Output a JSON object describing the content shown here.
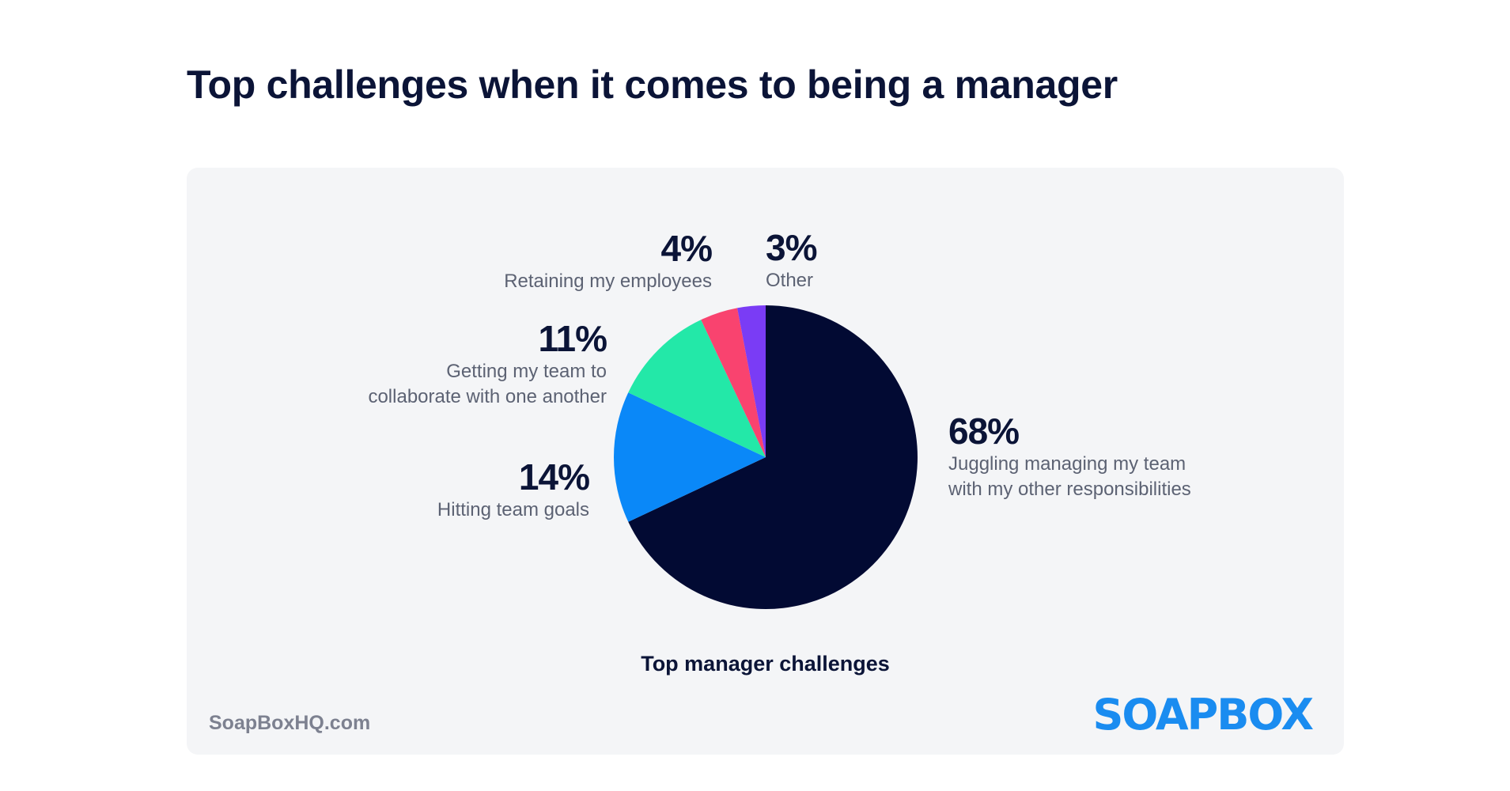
{
  "chart_data": {
    "type": "pie",
    "title": "Top challenges when it comes to being a manager",
    "subtitle": "Top manager challenges",
    "categories": [
      "Juggling managing my team\nwith my other responsibilities",
      "Hitting team goals",
      "Getting my team to\ncollaborate with one another",
      "Retaining my employees",
      "Other"
    ],
    "values": [
      68,
      14,
      11,
      4,
      3
    ],
    "value_labels": [
      "68%",
      "14%",
      "11%",
      "4%",
      "3%"
    ],
    "colors": [
      "#020a33",
      "#0a88f8",
      "#23e8a8",
      "#f9436f",
      "#7a3cf5"
    ]
  },
  "footer": {
    "site": "SoapBoxHQ.com",
    "logo": "SOAPBOX"
  }
}
